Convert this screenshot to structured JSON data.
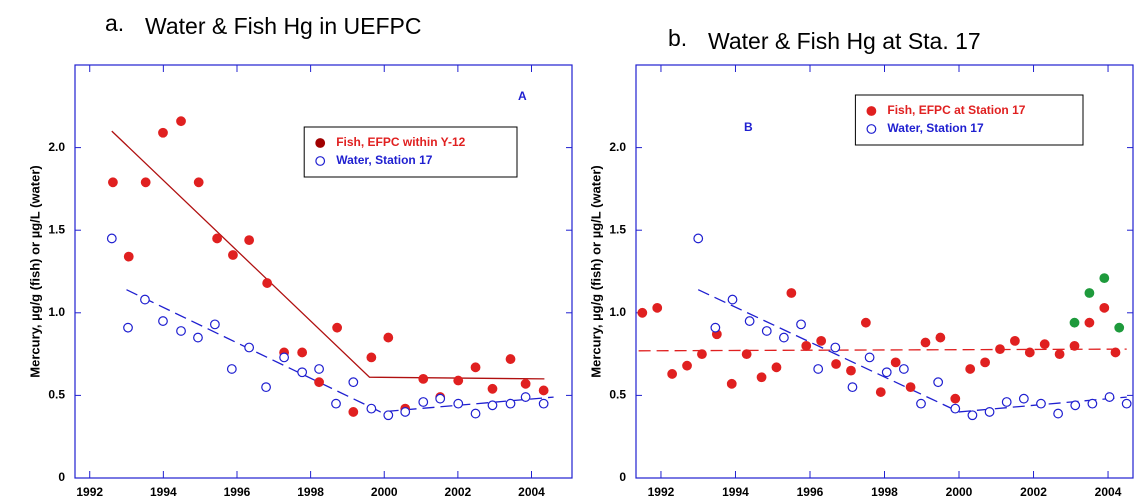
{
  "chart_data": [
    {
      "type": "scatter",
      "panel_label": "a.",
      "title": "Water & Fish Hg in UEFPC",
      "annotation": "A",
      "ylabel": "Mercury, µg/g (fish) or µg/L (water)",
      "xlim": [
        1991.6,
        2005.1
      ],
      "xticks": [
        1992,
        1994,
        1996,
        1998,
        2000,
        2002,
        2004
      ],
      "ylim": [
        0,
        2.5
      ],
      "yticks": [
        0,
        0.5,
        {
          "value": 1,
          "label": "1.0"
        },
        1.5,
        {
          "value": 2,
          "label": "2.0"
        }
      ],
      "legend": "upper right",
      "series": [
        {
          "name": "Fish, EFPC within Y-12",
          "color": "#e02020",
          "legend_color": "#a00000",
          "marker": "filled",
          "x": [
            1992.63,
            1993.06,
            1993.52,
            1993.99,
            1994.48,
            1994.96,
            1995.46,
            1995.89,
            1996.33,
            1996.82,
            1997.28,
            1997.77,
            1998.23,
            1998.72,
            1999.16,
            1999.65,
            2000.11,
            2000.57,
            2001.06,
            2001.52,
            2002.01,
            2002.48,
            2002.94,
            2003.43,
            2003.84,
            2004.33
          ],
          "values": [
            1.79,
            1.34,
            1.79,
            2.09,
            2.16,
            1.79,
            1.45,
            1.35,
            1.44,
            1.18,
            0.76,
            0.76,
            0.58,
            0.91,
            0.4,
            0.73,
            0.85,
            0.42,
            0.6,
            0.49,
            0.59,
            0.67,
            0.54,
            0.72,
            0.57,
            0.53
          ]
        },
        {
          "name": "Water, Station 17",
          "color": "#1f1fd0",
          "marker": "open",
          "x": [
            1992.6,
            1993.04,
            1993.5,
            1993.99,
            1994.48,
            1994.94,
            1995.4,
            1995.86,
            1996.33,
            1996.79,
            1997.28,
            1997.77,
            1998.23,
            1998.69,
            1999.16,
            1999.65,
            2000.11,
            2000.57,
            2001.06,
            2001.52,
            2002.01,
            2002.48,
            2002.94,
            2003.43,
            2003.84,
            2004.33
          ],
          "values": [
            1.45,
            0.91,
            1.08,
            0.95,
            0.89,
            0.85,
            0.93,
            0.66,
            0.79,
            0.55,
            0.73,
            0.64,
            0.66,
            0.45,
            0.58,
            0.42,
            0.38,
            0.4,
            0.46,
            0.48,
            0.45,
            0.39,
            0.44,
            0.45,
            0.49,
            0.45
          ]
        }
      ],
      "trend_lines": [
        {
          "color": "#b01010",
          "dash": false,
          "x": [
            1992.6,
            1999.6,
            2004.35
          ],
          "values": [
            2.1,
            0.61,
            0.6
          ]
        },
        {
          "color": "#1f1fd0",
          "dash": true,
          "x": [
            1993.0,
            1999.9,
            2004.6
          ],
          "values": [
            1.14,
            0.4,
            0.49
          ]
        }
      ]
    },
    {
      "type": "scatter",
      "panel_label": "b.",
      "title": "Water & Fish Hg at Sta. 17",
      "annotation": "B",
      "ylabel": "Mercury, µg/g (fish) or µg/L (water)",
      "xlim": [
        1991.33,
        2004.67
      ],
      "xticks": [
        1992,
        1994,
        1996,
        1998,
        2000,
        2002,
        2004
      ],
      "ylim": [
        0,
        2.5
      ],
      "yticks": [
        0,
        0.5,
        {
          "value": 1,
          "label": "1.0"
        },
        1.5,
        {
          "value": 2,
          "label": "2.0"
        }
      ],
      "legend": "upper right",
      "series": [
        {
          "name": "Fish, EFPC at Station 17",
          "color": "#e02020",
          "marker": "filled",
          "x": [
            1991.5,
            1991.9,
            1992.3,
            1992.7,
            1993.1,
            1993.5,
            1993.9,
            1994.3,
            1994.7,
            1995.1,
            1995.5,
            1995.9,
            1996.3,
            1996.7,
            1997.1,
            1997.5,
            1997.9,
            1998.3,
            1998.7,
            1999.1,
            1999.5,
            1999.9,
            2000.3,
            2000.7,
            2001.1,
            2001.5,
            2001.9,
            2002.3,
            2002.7,
            2003.1,
            2003.5,
            2003.9,
            2004.2
          ],
          "values": [
            1.0,
            1.03,
            0.63,
            0.68,
            0.75,
            0.87,
            0.57,
            0.75,
            0.61,
            0.67,
            1.12,
            0.8,
            0.83,
            0.69,
            0.65,
            0.94,
            0.52,
            0.7,
            0.55,
            0.82,
            0.85,
            0.48,
            0.66,
            0.7,
            0.78,
            0.83,
            0.76,
            0.81,
            0.75,
            0.8,
            0.94,
            1.03,
            0.76
          ]
        },
        {
          "name": "Water, Station 17",
          "color": "#1f1fd0",
          "marker": "open",
          "x": [
            1993.0,
            1993.46,
            1993.92,
            1994.38,
            1994.84,
            1995.3,
            1995.76,
            1996.22,
            1996.68,
            1997.14,
            1997.6,
            1998.06,
            1998.52,
            1998.98,
            1999.44,
            1999.9,
            2000.36,
            2000.82,
            2001.28,
            2001.74,
            2002.2,
            2002.66,
            2003.12,
            2003.58,
            2004.04,
            2004.5
          ],
          "values": [
            1.45,
            0.91,
            1.08,
            0.95,
            0.89,
            0.85,
            0.93,
            0.66,
            0.79,
            0.55,
            0.73,
            0.64,
            0.66,
            0.45,
            0.58,
            0.42,
            0.38,
            0.4,
            0.46,
            0.48,
            0.45,
            0.39,
            0.44,
            0.45,
            0.49,
            0.45
          ]
        },
        {
          "color": "#1e9a3c",
          "marker": "filled",
          "x": [
            2003.1,
            2003.5,
            2003.9,
            2004.3
          ],
          "values": [
            0.94,
            1.12,
            1.21,
            0.91
          ]
        }
      ],
      "trend_lines": [
        {
          "color": "#e02020",
          "dash": true,
          "x": [
            1991.4,
            2004.5
          ],
          "values": [
            0.77,
            0.78
          ]
        },
        {
          "color": "#1f1fd0",
          "dash": true,
          "x": [
            1993.0,
            2000.0,
            2004.5
          ],
          "values": [
            1.14,
            0.4,
            0.49
          ]
        }
      ]
    }
  ]
}
